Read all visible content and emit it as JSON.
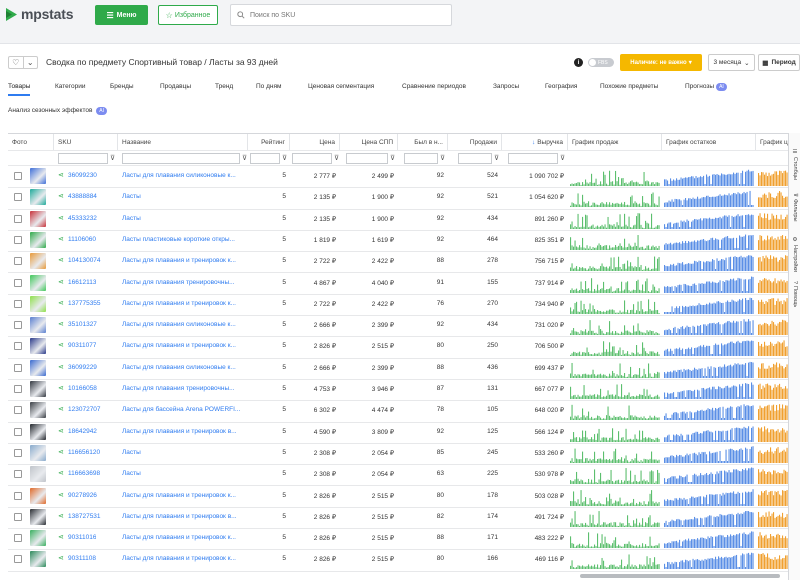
{
  "header": {
    "logo_text": "mpstats",
    "menu_label": "Меню",
    "favorites_label": "Избранное",
    "search_placeholder": "Поиск по SKU"
  },
  "titlebar": {
    "title": "Сводка по предмету Спортивный товар / Ласты  за 93 дней",
    "toggle_label": "FBS",
    "warn_button": "Наличие: не важно",
    "period_select": "3 месяца",
    "period_button": "Период"
  },
  "tabs": [
    {
      "label": "Товары",
      "active": true
    },
    {
      "label": "Категории"
    },
    {
      "label": "Бренды"
    },
    {
      "label": "Продавцы"
    },
    {
      "label": "Тренд"
    },
    {
      "label": "По дням"
    },
    {
      "label": "Ценовая сегментация"
    },
    {
      "label": "Сравнение периодов"
    },
    {
      "label": "Запросы"
    },
    {
      "label": "География"
    },
    {
      "label": "Похожие предметы"
    },
    {
      "label": "Прогнозы",
      "badge": "AI"
    }
  ],
  "subtab": {
    "label": "Анализ сезонных эффектов",
    "badge": "AI"
  },
  "columns": {
    "photo": "Фото",
    "sku": "SKU",
    "name": "Название",
    "rating": "Рейтинг",
    "price": "Цена",
    "price_spp": "Цена СПП",
    "was_in": "Был в н...",
    "sales": "Продажи",
    "revenue": "Выручка",
    "sales_chart": "График продаж",
    "stock_chart": "График остатков",
    "price_chart": "График ц"
  },
  "side_panel": [
    "Столбцы",
    "Фильтры",
    "Настройки",
    "Помощь"
  ],
  "colors": {
    "sales": "#5cbf6e",
    "stock": "#5b8fe6",
    "price": "#f0a030",
    "accent": "#2faa4a",
    "link": "#2f7cf0"
  },
  "rows": [
    {
      "sku": "36099230",
      "name": "Ласты для плавания силиконовые к...",
      "rating": "5",
      "price": "2 777 ₽",
      "spp": "2 499 ₽",
      "was": "92",
      "sales": "524",
      "revenue": "1 090 702 ₽",
      "thumb": "#3f6fd8"
    },
    {
      "sku": "43888884",
      "name": "Ласты",
      "rating": "5",
      "price": "2 135 ₽",
      "spp": "1 900 ₽",
      "was": "92",
      "sales": "521",
      "revenue": "1 054 620 ₽",
      "thumb": "#1faa9a"
    },
    {
      "sku": "45333232",
      "name": "Ласты",
      "rating": "5",
      "price": "2 135 ₽",
      "spp": "1 900 ₽",
      "was": "92",
      "sales": "434",
      "revenue": "891 260 ₽",
      "thumb": "#c8323a"
    },
    {
      "sku": "11106060",
      "name": "Ласты пластиковые короткие откры...",
      "rating": "5",
      "price": "1 819 ₽",
      "spp": "1 619 ₽",
      "was": "92",
      "sales": "464",
      "revenue": "825 351 ₽",
      "thumb": "#2faa4a"
    },
    {
      "sku": "104130074",
      "name": "Ласты для плавания и тренировок к...",
      "rating": "5",
      "price": "2 722 ₽",
      "spp": "2 422 ₽",
      "was": "88",
      "sales": "278",
      "revenue": "756 715 ₽",
      "thumb": "#e89a3a"
    },
    {
      "sku": "16612113",
      "name": "Ласты для плавания тренировочны...",
      "rating": "5",
      "price": "4 867 ₽",
      "spp": "4 040 ₽",
      "was": "91",
      "sales": "155",
      "revenue": "737 914 ₽",
      "thumb": "#3fc85a"
    },
    {
      "sku": "137775355",
      "name": "Ласты для плавания и тренировок к...",
      "rating": "5",
      "price": "2 722 ₽",
      "spp": "2 422 ₽",
      "was": "76",
      "sales": "270",
      "revenue": "734 940 ₽",
      "thumb": "#8ee04a"
    },
    {
      "sku": "35101327",
      "name": "Ласты для плавания силиконовые к...",
      "rating": "5",
      "price": "2 666 ₽",
      "spp": "2 399 ₽",
      "was": "92",
      "sales": "434",
      "revenue": "731 020 ₽",
      "thumb": "#5a7fd0"
    },
    {
      "sku": "90311077",
      "name": "Ласты для плавания и тренировок к...",
      "rating": "5",
      "price": "2 826 ₽",
      "spp": "2 515 ₽",
      "was": "80",
      "sales": "250",
      "revenue": "706 500 ₽",
      "thumb": "#2a3a8a"
    },
    {
      "sku": "36099229",
      "name": "Ласты для плавания силиконовые к...",
      "rating": "5",
      "price": "2 666 ₽",
      "spp": "2 399 ₽",
      "was": "88",
      "sales": "436",
      "revenue": "699 437 ₽",
      "thumb": "#3a6ad0"
    },
    {
      "sku": "10166058",
      "name": "Ласты для плавания тренировочны...",
      "rating": "5",
      "price": "4 753 ₽",
      "spp": "3 946 ₽",
      "was": "87",
      "sales": "131",
      "revenue": "667 077 ₽",
      "thumb": "#333840"
    },
    {
      "sku": "123072707",
      "name": "Ласты для бассейна Arena POWERFI...",
      "rating": "5",
      "price": "6 302 ₽",
      "spp": "4 474 ₽",
      "was": "78",
      "sales": "105",
      "revenue": "648 020 ₽",
      "thumb": "#3a3e44"
    },
    {
      "sku": "18642942",
      "name": "Ласты для плавания и тренировок в...",
      "rating": "5",
      "price": "4 590 ₽",
      "spp": "3 809 ₽",
      "was": "92",
      "sales": "125",
      "revenue": "566 124 ₽",
      "thumb": "#22262c"
    },
    {
      "sku": "116656120",
      "name": "Ласты",
      "rating": "5",
      "price": "2 308 ₽",
      "spp": "2 054 ₽",
      "was": "85",
      "sales": "245",
      "revenue": "533 260 ₽",
      "thumb": "#88aacc"
    },
    {
      "sku": "116663698",
      "name": "Ласты",
      "rating": "5",
      "price": "2 308 ₽",
      "spp": "2 054 ₽",
      "was": "63",
      "sales": "225",
      "revenue": "530 978 ₽",
      "thumb": "#c0c4ca"
    },
    {
      "sku": "90278926",
      "name": "Ласты для плавания и тренировок к...",
      "rating": "5",
      "price": "2 826 ₽",
      "spp": "2 515 ₽",
      "was": "80",
      "sales": "178",
      "revenue": "503 028 ₽",
      "thumb": "#e06a2a"
    },
    {
      "sku": "138727531",
      "name": "Ласты для плавания и тренировок в...",
      "rating": "5",
      "price": "2 826 ₽",
      "spp": "2 515 ₽",
      "was": "82",
      "sales": "174",
      "revenue": "491 724 ₽",
      "thumb": "#2a2e34"
    },
    {
      "sku": "90311016",
      "name": "Ласты для плавания и тренировок к...",
      "rating": "5",
      "price": "2 826 ₽",
      "spp": "2 515 ₽",
      "was": "88",
      "sales": "171",
      "revenue": "483 222 ₽",
      "thumb": "#3ab060"
    },
    {
      "sku": "90311108",
      "name": "Ласты для плавания и тренировок к...",
      "rating": "5",
      "price": "2 826 ₽",
      "spp": "2 515 ₽",
      "was": "80",
      "sales": "166",
      "revenue": "469 116 ₽",
      "thumb": "#2a8a5a"
    }
  ]
}
